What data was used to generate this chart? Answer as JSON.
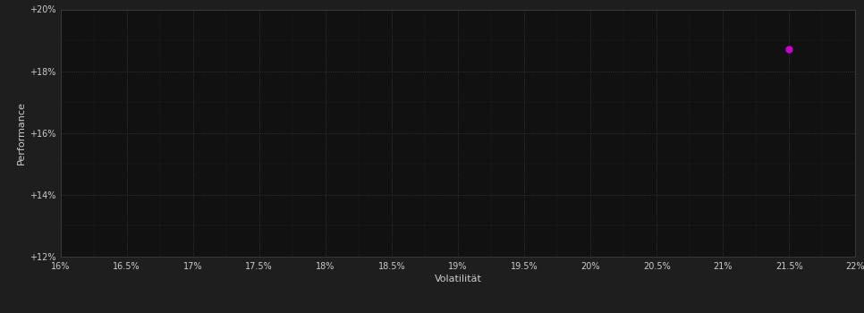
{
  "background_color": "#1e1e1e",
  "plot_bg_color": "#111111",
  "grid_color": "#555555",
  "point_x": 21.5,
  "point_y": 18.7,
  "point_color": "#cc00cc",
  "point_size": 25,
  "xlabel": "Volatilität",
  "ylabel": "Performance",
  "xlabel_color": "#cccccc",
  "ylabel_color": "#cccccc",
  "tick_color": "#cccccc",
  "xlim": [
    16.0,
    22.0
  ],
  "ylim": [
    12.0,
    20.0
  ],
  "xticks": [
    16.0,
    16.5,
    17.0,
    17.5,
    18.0,
    18.5,
    19.0,
    19.5,
    20.0,
    20.5,
    21.0,
    21.5,
    22.0
  ],
  "yticks": [
    12.0,
    14.0,
    16.0,
    18.0,
    20.0
  ],
  "xtick_labels": [
    "16%",
    "16.5%",
    "17%",
    "17.5%",
    "18%",
    "18.5%",
    "19%",
    "19.5%",
    "20%",
    "20.5%",
    "21%",
    "21.5%",
    "22%"
  ],
  "ytick_labels": [
    "+12%",
    "+14%",
    "+16%",
    "+18%",
    "+20%"
  ],
  "tick_fontsize": 7.0,
  "label_fontsize": 8.0,
  "spine_color": "#444444",
  "fig_width": 9.66,
  "fig_height": 3.5,
  "dpi": 100
}
